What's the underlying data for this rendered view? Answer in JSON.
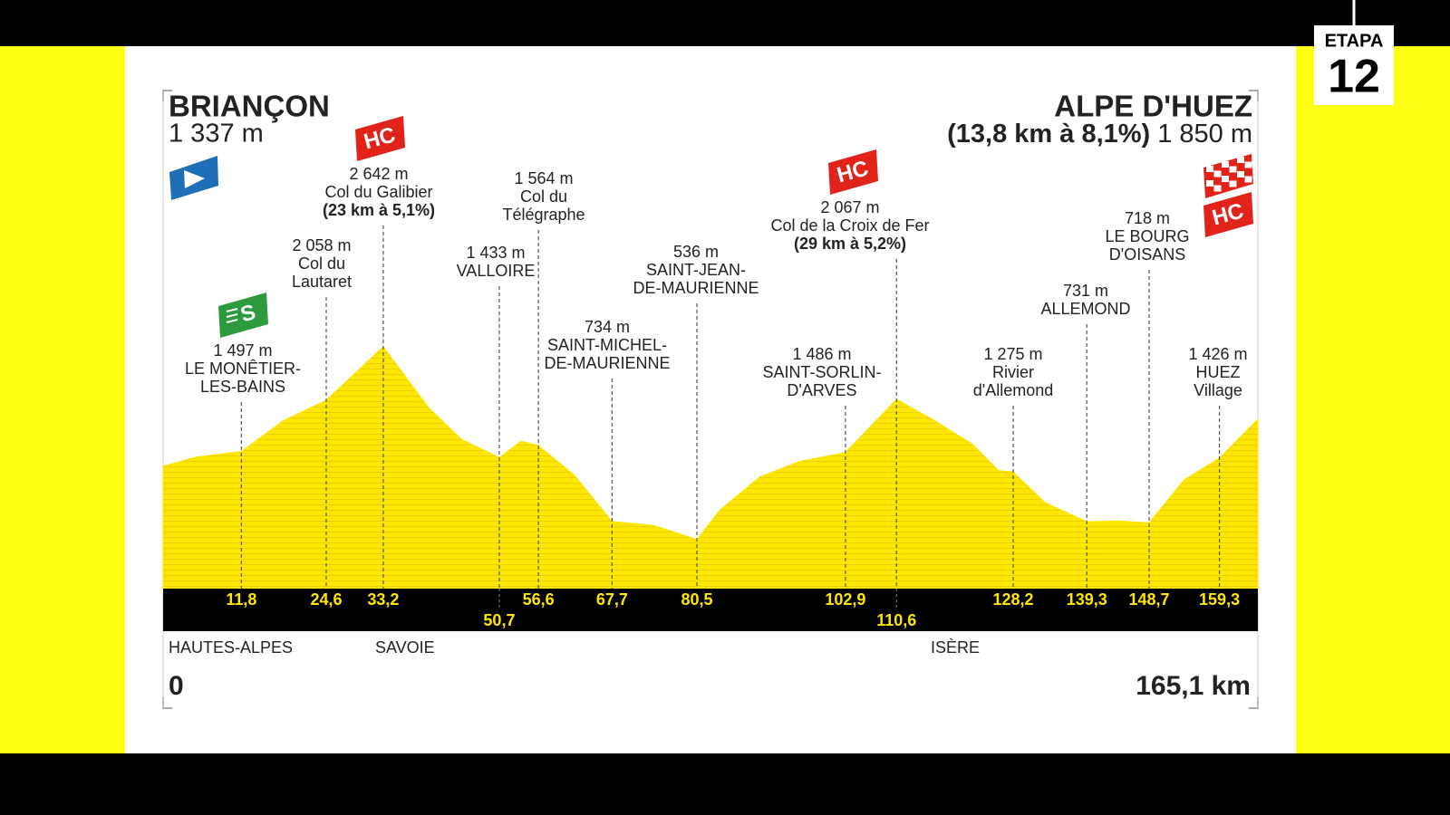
{
  "stage": {
    "label": "ETAPA",
    "number": 12
  },
  "chart_data": {
    "type": "area",
    "start": {
      "name": "BRIANÇON",
      "elevation": 1337,
      "elevation_label": "1 337 m"
    },
    "finish": {
      "name": "ALPE D'HUEZ",
      "climb": "(13,8 km à 8,1%)",
      "elevation": 1850,
      "elevation_label": "1 850 m",
      "category": "HC"
    },
    "x": [
      0,
      5,
      11.8,
      18,
      24.6,
      33.2,
      40,
      45,
      50.7,
      54,
      56.6,
      62,
      67.7,
      74,
      80.5,
      84,
      90,
      96,
      102.9,
      110.6,
      116,
      122,
      126,
      128.2,
      133,
      139.3,
      144,
      148.7,
      154,
      159.3,
      165.1
    ],
    "values": [
      1337,
      1436,
      1497,
      1830,
      2058,
      2642,
      1980,
      1630,
      1433,
      1610,
      1564,
      1240,
      734,
      690,
      536,
      860,
      1220,
      1390,
      1486,
      2067,
      1850,
      1580,
      1290,
      1275,
      940,
      731,
      740,
      718,
      1190,
      1426,
      1850
    ],
    "color": "#ffe600",
    "xlim": [
      0,
      165.1
    ],
    "xlim_labels": [
      "0",
      "165,1 km"
    ],
    "ylim": [
      0,
      5400
    ],
    "xticks": [
      {
        "value": 11.8,
        "label": "11,8"
      },
      {
        "value": 24.6,
        "label": "24,6"
      },
      {
        "value": 33.2,
        "label": "33,2"
      },
      {
        "value": 50.7,
        "label": "50,7"
      },
      {
        "value": 56.6,
        "label": "56,6"
      },
      {
        "value": 67.7,
        "label": "67,7"
      },
      {
        "value": 80.5,
        "label": "80,5"
      },
      {
        "value": 102.9,
        "label": "102,9"
      },
      {
        "value": 110.6,
        "label": "110,6"
      },
      {
        "value": 128.2,
        "label": "128,2"
      },
      {
        "value": 139.3,
        "label": "139,3"
      },
      {
        "value": 148.7,
        "label": "148,7"
      },
      {
        "value": 159.3,
        "label": "159,3"
      }
    ],
    "waypoints": [
      {
        "elevation": 1497,
        "elevation_label": "1 497 m",
        "name": [
          "LE MONÊTIER-",
          "LES-BAINS"
        ],
        "category": "S"
      },
      {
        "elevation": 2058,
        "elevation_label": "2 058 m",
        "name": [
          "Col du",
          "Lautaret"
        ]
      },
      {
        "elevation": 2642,
        "elevation_label": "2 642 m",
        "name": [
          "Col du Galibier"
        ],
        "climb": "(23 km à 5,1%)",
        "category": "HC"
      },
      {
        "elevation": 1433,
        "elevation_label": "1 433 m",
        "name": [
          "VALLOIRE"
        ]
      },
      {
        "elevation": 1564,
        "elevation_label": "1 564 m",
        "name": [
          "Col du",
          "Télégraphe"
        ]
      },
      {
        "elevation": 734,
        "elevation_label": "734 m",
        "name": [
          "SAINT-MICHEL-",
          "DE-MAURIENNE"
        ]
      },
      {
        "elevation": 536,
        "elevation_label": "536 m",
        "name": [
          "SAINT-JEAN-",
          "DE-MAURIENNE"
        ]
      },
      {
        "elevation": 1486,
        "elevation_label": "1 486 m",
        "name": [
          "SAINT-SORLIN-",
          "D'ARVES"
        ]
      },
      {
        "elevation": 2067,
        "elevation_label": "2 067 m",
        "name": [
          "Col de la Croix de Fer"
        ],
        "climb": "(29 km à 5,2%)",
        "category": "HC"
      },
      {
        "elevation": 1275,
        "elevation_label": "1 275 m",
        "name": [
          "Rivier",
          "d'Allemond"
        ]
      },
      {
        "elevation": 731,
        "elevation_label": "731 m",
        "name": [
          "ALLEMOND"
        ]
      },
      {
        "elevation": 718,
        "elevation_label": "718 m",
        "name": [
          "LE BOURG",
          "D'OISANS"
        ]
      },
      {
        "elevation": 1426,
        "elevation_label": "1 426 m",
        "name": [
          "HUEZ",
          "Village"
        ]
      }
    ],
    "regions": [
      "HAUTES-ALPES",
      "SAVOIE",
      "ISÈRE"
    ]
  }
}
